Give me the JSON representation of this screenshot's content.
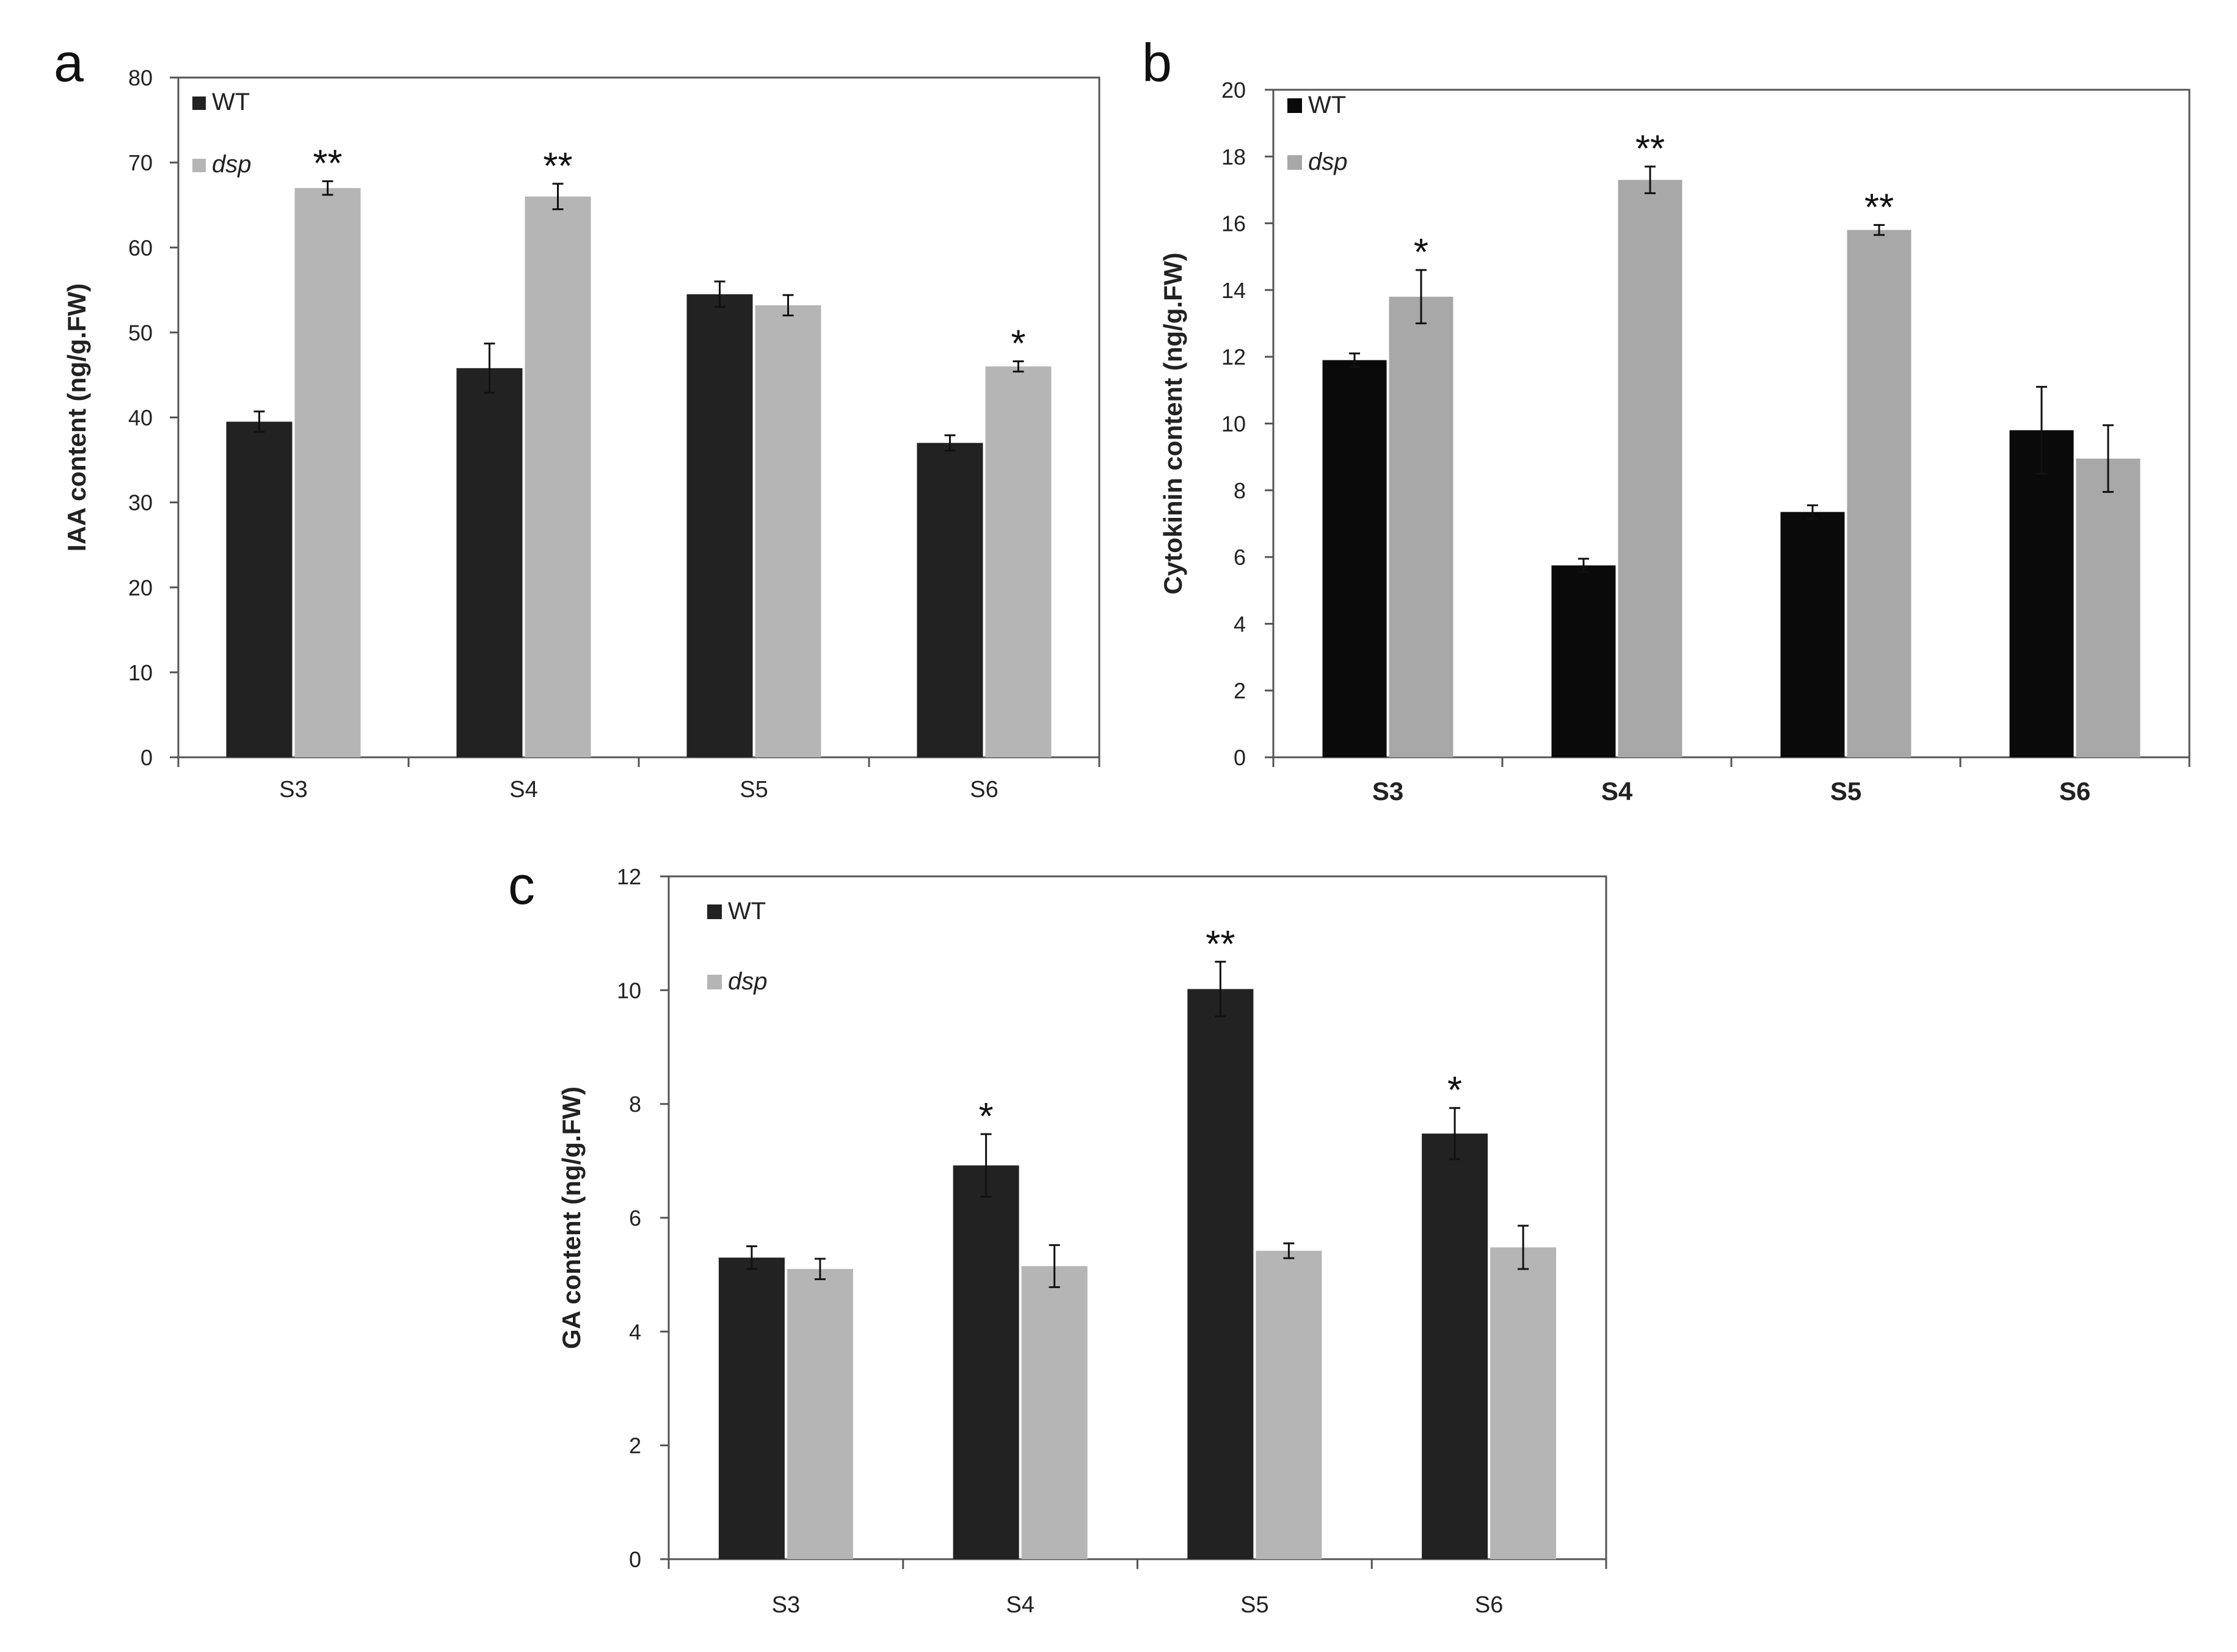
{
  "chart_data": [
    {
      "type": "bar",
      "panel_label": "a",
      "title": "",
      "xlabel": "",
      "ylabel": "IAA content (ng/g.FW)",
      "ylim": [
        0,
        80
      ],
      "yticks": [
        0,
        10,
        20,
        30,
        40,
        50,
        60,
        70,
        80
      ],
      "grid": false,
      "legend_position": "top-left",
      "categories": [
        "S3",
        "S4",
        "S5",
        "S6"
      ],
      "series": [
        {
          "name": "WT",
          "color": "#222222",
          "values": [
            39.5,
            45.8,
            54.5,
            37.0
          ],
          "errors": [
            1.2,
            2.9,
            1.5,
            0.9
          ]
        },
        {
          "name": "dsp",
          "color": "#b5b5b5",
          "values": [
            67.0,
            66.0,
            53.2,
            46.0
          ],
          "errors": [
            0.8,
            1.5,
            1.2,
            0.6
          ]
        }
      ],
      "annotations": [
        {
          "category": "S3",
          "series": "dsp",
          "text": "**"
        },
        {
          "category": "S4",
          "series": "dsp",
          "text": "**"
        },
        {
          "category": "S6",
          "series": "dsp",
          "text": "*"
        }
      ]
    },
    {
      "type": "bar",
      "panel_label": "b",
      "title": "",
      "xlabel": "",
      "ylabel": "Cytokinin content (ng/g.FW)",
      "ylim": [
        0,
        20
      ],
      "yticks": [
        0,
        2,
        4,
        6,
        8,
        10,
        12,
        14,
        16,
        18,
        20
      ],
      "grid": false,
      "legend_position": "top-left",
      "categories": [
        "S3",
        "S4",
        "S5",
        "S6"
      ],
      "series": [
        {
          "name": "WT",
          "color": "#0a0a0a",
          "values": [
            11.9,
            5.75,
            7.35,
            9.8
          ],
          "errors": [
            0.2,
            0.2,
            0.2,
            1.3
          ]
        },
        {
          "name": "dsp",
          "color": "#a8a8a8",
          "values": [
            13.8,
            17.3,
            15.8,
            8.95
          ],
          "errors": [
            0.8,
            0.4,
            0.15,
            1.0
          ]
        }
      ],
      "annotations": [
        {
          "category": "S3",
          "series": "dsp",
          "text": "*"
        },
        {
          "category": "S4",
          "series": "dsp",
          "text": "**"
        },
        {
          "category": "S5",
          "series": "dsp",
          "text": "**"
        }
      ]
    },
    {
      "type": "bar",
      "panel_label": "c",
      "title": "",
      "xlabel": "",
      "ylabel": "GA content (ng/g.FW)",
      "ylim": [
        0,
        12
      ],
      "yticks": [
        0,
        2,
        4,
        6,
        8,
        10,
        12
      ],
      "grid": false,
      "legend_position": "top-left",
      "categories": [
        "S3",
        "S4",
        "S5",
        "S6"
      ],
      "series": [
        {
          "name": "WT",
          "color": "#222222",
          "values": [
            5.3,
            6.92,
            10.02,
            7.48
          ],
          "errors": [
            0.2,
            0.55,
            0.48,
            0.45
          ]
        },
        {
          "name": "dsp",
          "color": "#b5b5b5",
          "values": [
            5.1,
            5.15,
            5.42,
            5.48
          ],
          "errors": [
            0.18,
            0.37,
            0.13,
            0.38
          ]
        }
      ],
      "annotations": [
        {
          "category": "S4",
          "series": "WT",
          "text": "*"
        },
        {
          "category": "S5",
          "series": "WT",
          "text": "**"
        },
        {
          "category": "S6",
          "series": "WT",
          "text": "*"
        }
      ]
    }
  ]
}
